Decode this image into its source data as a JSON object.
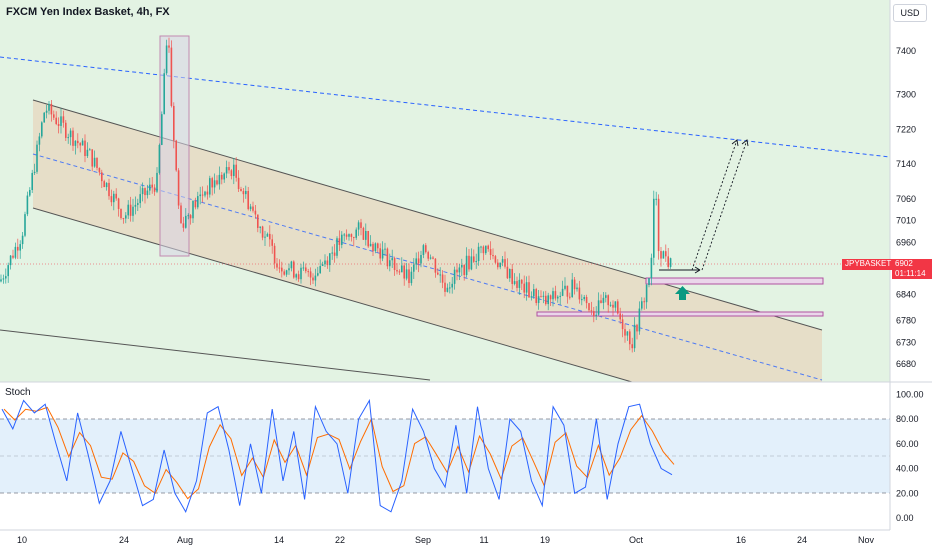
{
  "header": {
    "title": "FXCM Yen Index Basket, 4h, FX",
    "currency": "USD"
  },
  "price_tag": {
    "symbol": "JPYBASKET",
    "price": "6902",
    "countdown": "01:11:14"
  },
  "colors": {
    "up": "#26a69a",
    "down": "#ef5350",
    "bg_green": "#e3f3e3",
    "channel": "#e6dcc6",
    "stoch_k": "#2962ff",
    "stoch_d": "#ff6d00",
    "stoch_band": "#e3f0fb",
    "box": "#c8a2c8"
  },
  "x_axis": {
    "labels": [
      "10",
      "24",
      "Aug",
      "14",
      "22",
      "Sep",
      "11",
      "19",
      "Oct",
      "16",
      "24",
      "Nov"
    ]
  },
  "chart_data": [
    {
      "type": "candlestick",
      "title": "FXCM Yen Index Basket, 4h, FX",
      "y_ticks": [
        7400,
        7300,
        7220,
        7140,
        7060,
        7010,
        6960,
        6840,
        6780,
        6730,
        6680
      ],
      "current_price": 6902,
      "ohlc_anchors": [
        {
          "x": "Jul 07",
          "close": 6870
        },
        {
          "x": "Jul 10",
          "close": 6980
        },
        {
          "x": "Jul 13",
          "close": 7270
        },
        {
          "x": "Jul 18",
          "close": 7160
        },
        {
          "x": "Jul 24",
          "close": 7020
        },
        {
          "x": "Jul 28",
          "close": 7100
        },
        {
          "x": "Jul 29",
          "close": 7420
        },
        {
          "x": "Jul 31",
          "close": 7000
        },
        {
          "x": "Aug 04",
          "close": 7080
        },
        {
          "x": "Aug 08",
          "close": 7130
        },
        {
          "x": "Aug 14",
          "close": 6910
        },
        {
          "x": "Aug 19",
          "close": 6880
        },
        {
          "x": "Aug 22",
          "close": 6960
        },
        {
          "x": "Aug 25",
          "close": 6990
        },
        {
          "x": "Aug 29",
          "close": 6870
        },
        {
          "x": "Sep 02",
          "close": 6960
        },
        {
          "x": "Sep 05",
          "close": 6860
        },
        {
          "x": "Sep 11",
          "close": 6950
        },
        {
          "x": "Sep 15",
          "close": 6860
        },
        {
          "x": "Sep 19",
          "close": 6820
        },
        {
          "x": "Sep 23",
          "close": 6860
        },
        {
          "x": "Sep 26",
          "close": 6800
        },
        {
          "x": "Sep 29",
          "close": 6830
        },
        {
          "x": "Oct 01",
          "close": 6730
        },
        {
          "x": "Oct 02",
          "close": 6840
        },
        {
          "x": "Oct 03",
          "close": 6960
        },
        {
          "x": "Oct 05",
          "close": 6902
        }
      ]
    },
    {
      "type": "line",
      "title": "Stoch",
      "ylim": [
        0,
        100
      ],
      "y_ticks": [
        "100.00",
        "80.00",
        "60.00",
        "40.00",
        "20.00",
        "0.00"
      ],
      "levels": [
        80,
        50,
        20
      ],
      "series": [
        {
          "values": [
            88,
            72,
            95,
            85,
            92,
            60,
            30,
            85,
            50,
            12,
            30,
            70,
            40,
            10,
            15,
            55,
            20,
            5,
            30,
            85,
            90,
            55,
            10,
            60,
            20,
            88,
            30,
            70,
            15,
            90,
            70,
            60,
            20,
            80,
            95,
            10,
            5,
            30,
            88,
            70,
            40,
            25,
            75,
            20,
            90,
            40,
            15,
            80,
            70,
            30,
            10,
            90,
            75,
            20,
            25,
            80,
            15,
            60,
            90,
            92,
            60,
            40,
            35
          ]
        }
      ]
    }
  ]
}
